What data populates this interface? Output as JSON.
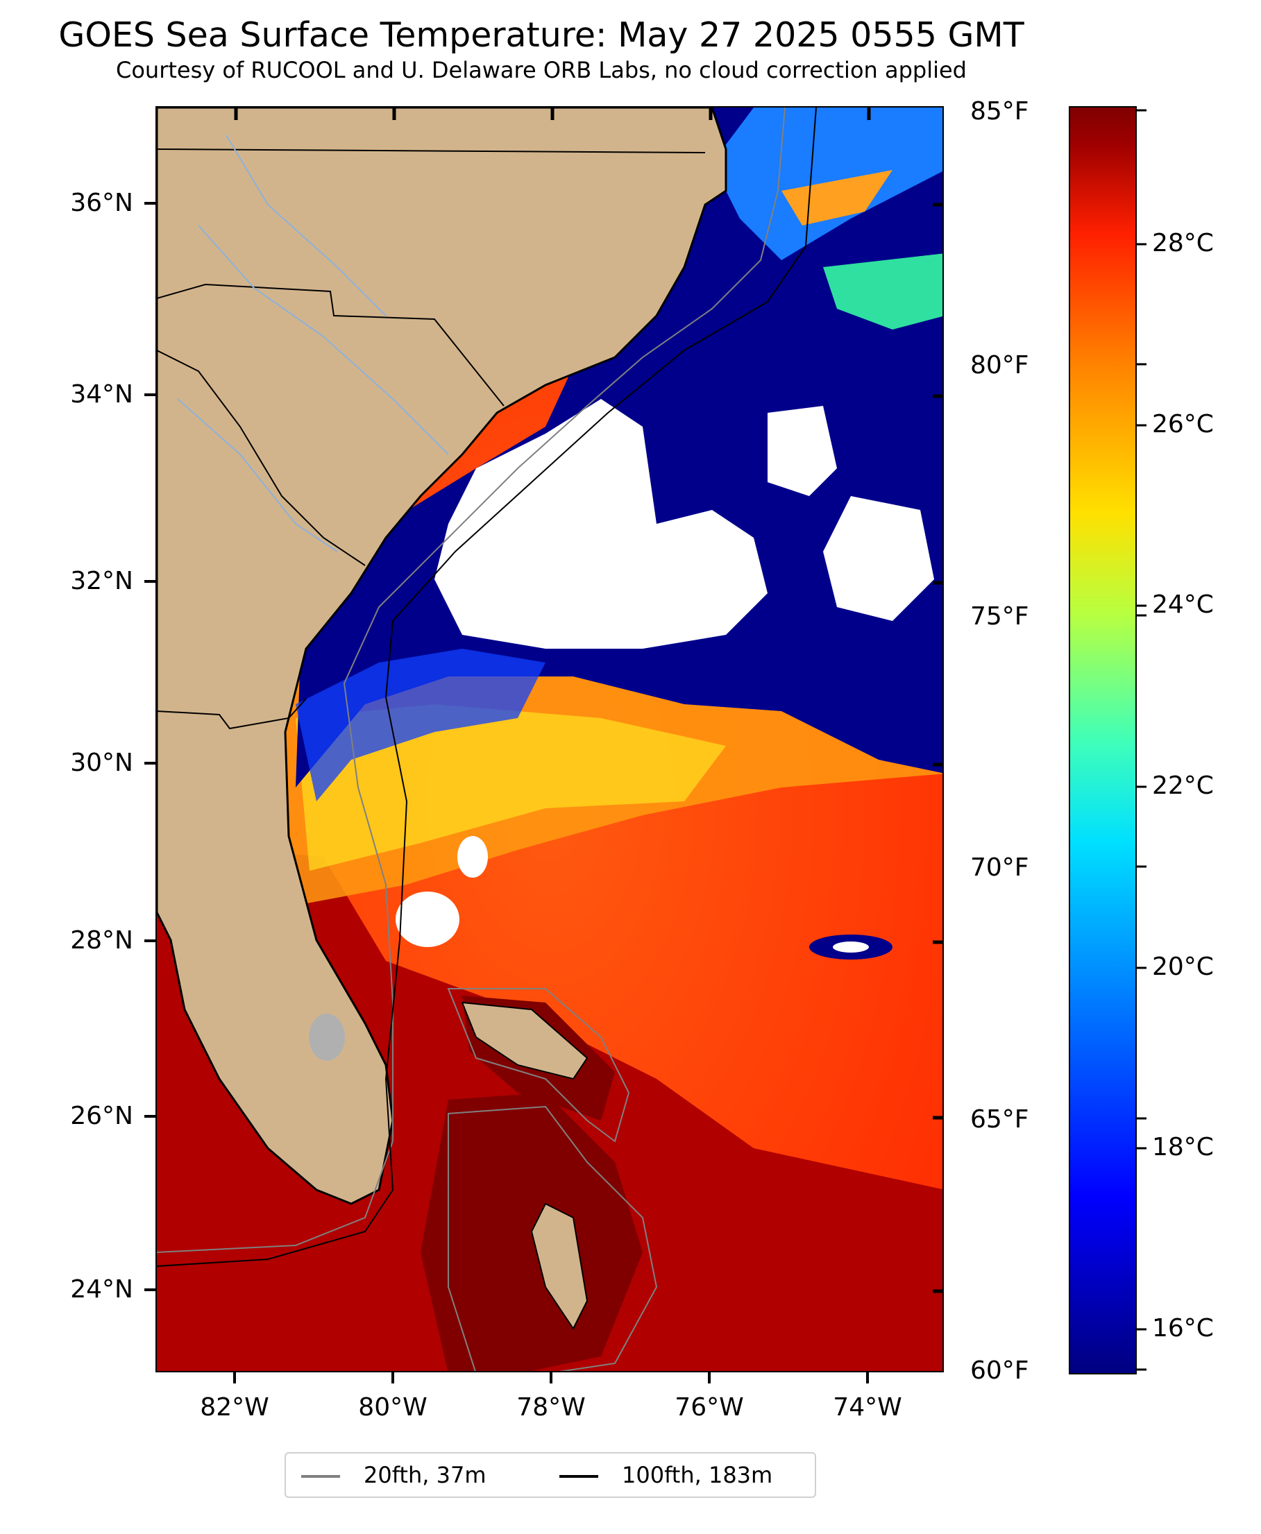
{
  "header": {
    "title": "GOES Sea Surface Temperature: May 27 2025 0555 GMT",
    "subtitle": "Courtesy of RUCOOL and U. Delaware ORB Labs, no cloud correction applied"
  },
  "map": {
    "lat_labels": [
      "36°N",
      "34°N",
      "32°N",
      "30°N",
      "28°N",
      "26°N",
      "24°N"
    ],
    "lon_labels": [
      "82°W",
      "80°W",
      "78°W",
      "76°W",
      "74°W"
    ],
    "colors": {
      "land": "#d2b48c",
      "cloud": "#ffffff",
      "cold_water": "#00008b",
      "warm_water": "#ff4000",
      "hot_water": "#800000",
      "rivers": "#8fb1d9",
      "lake": "#b0b0b0"
    }
  },
  "colorbar": {
    "fahrenheit_labels": [
      "85°F",
      "80°F",
      "75°F",
      "70°F",
      "65°F",
      "60°F"
    ],
    "celsius_labels": [
      "28°C",
      "26°C",
      "24°C",
      "22°C",
      "20°C",
      "18°C",
      "16°C"
    ],
    "colormap": "jet"
  },
  "legend": {
    "items": [
      {
        "label": "20fth, 37m",
        "color": "#808080"
      },
      {
        "label": "100fth, 183m",
        "color": "#000000"
      }
    ]
  }
}
